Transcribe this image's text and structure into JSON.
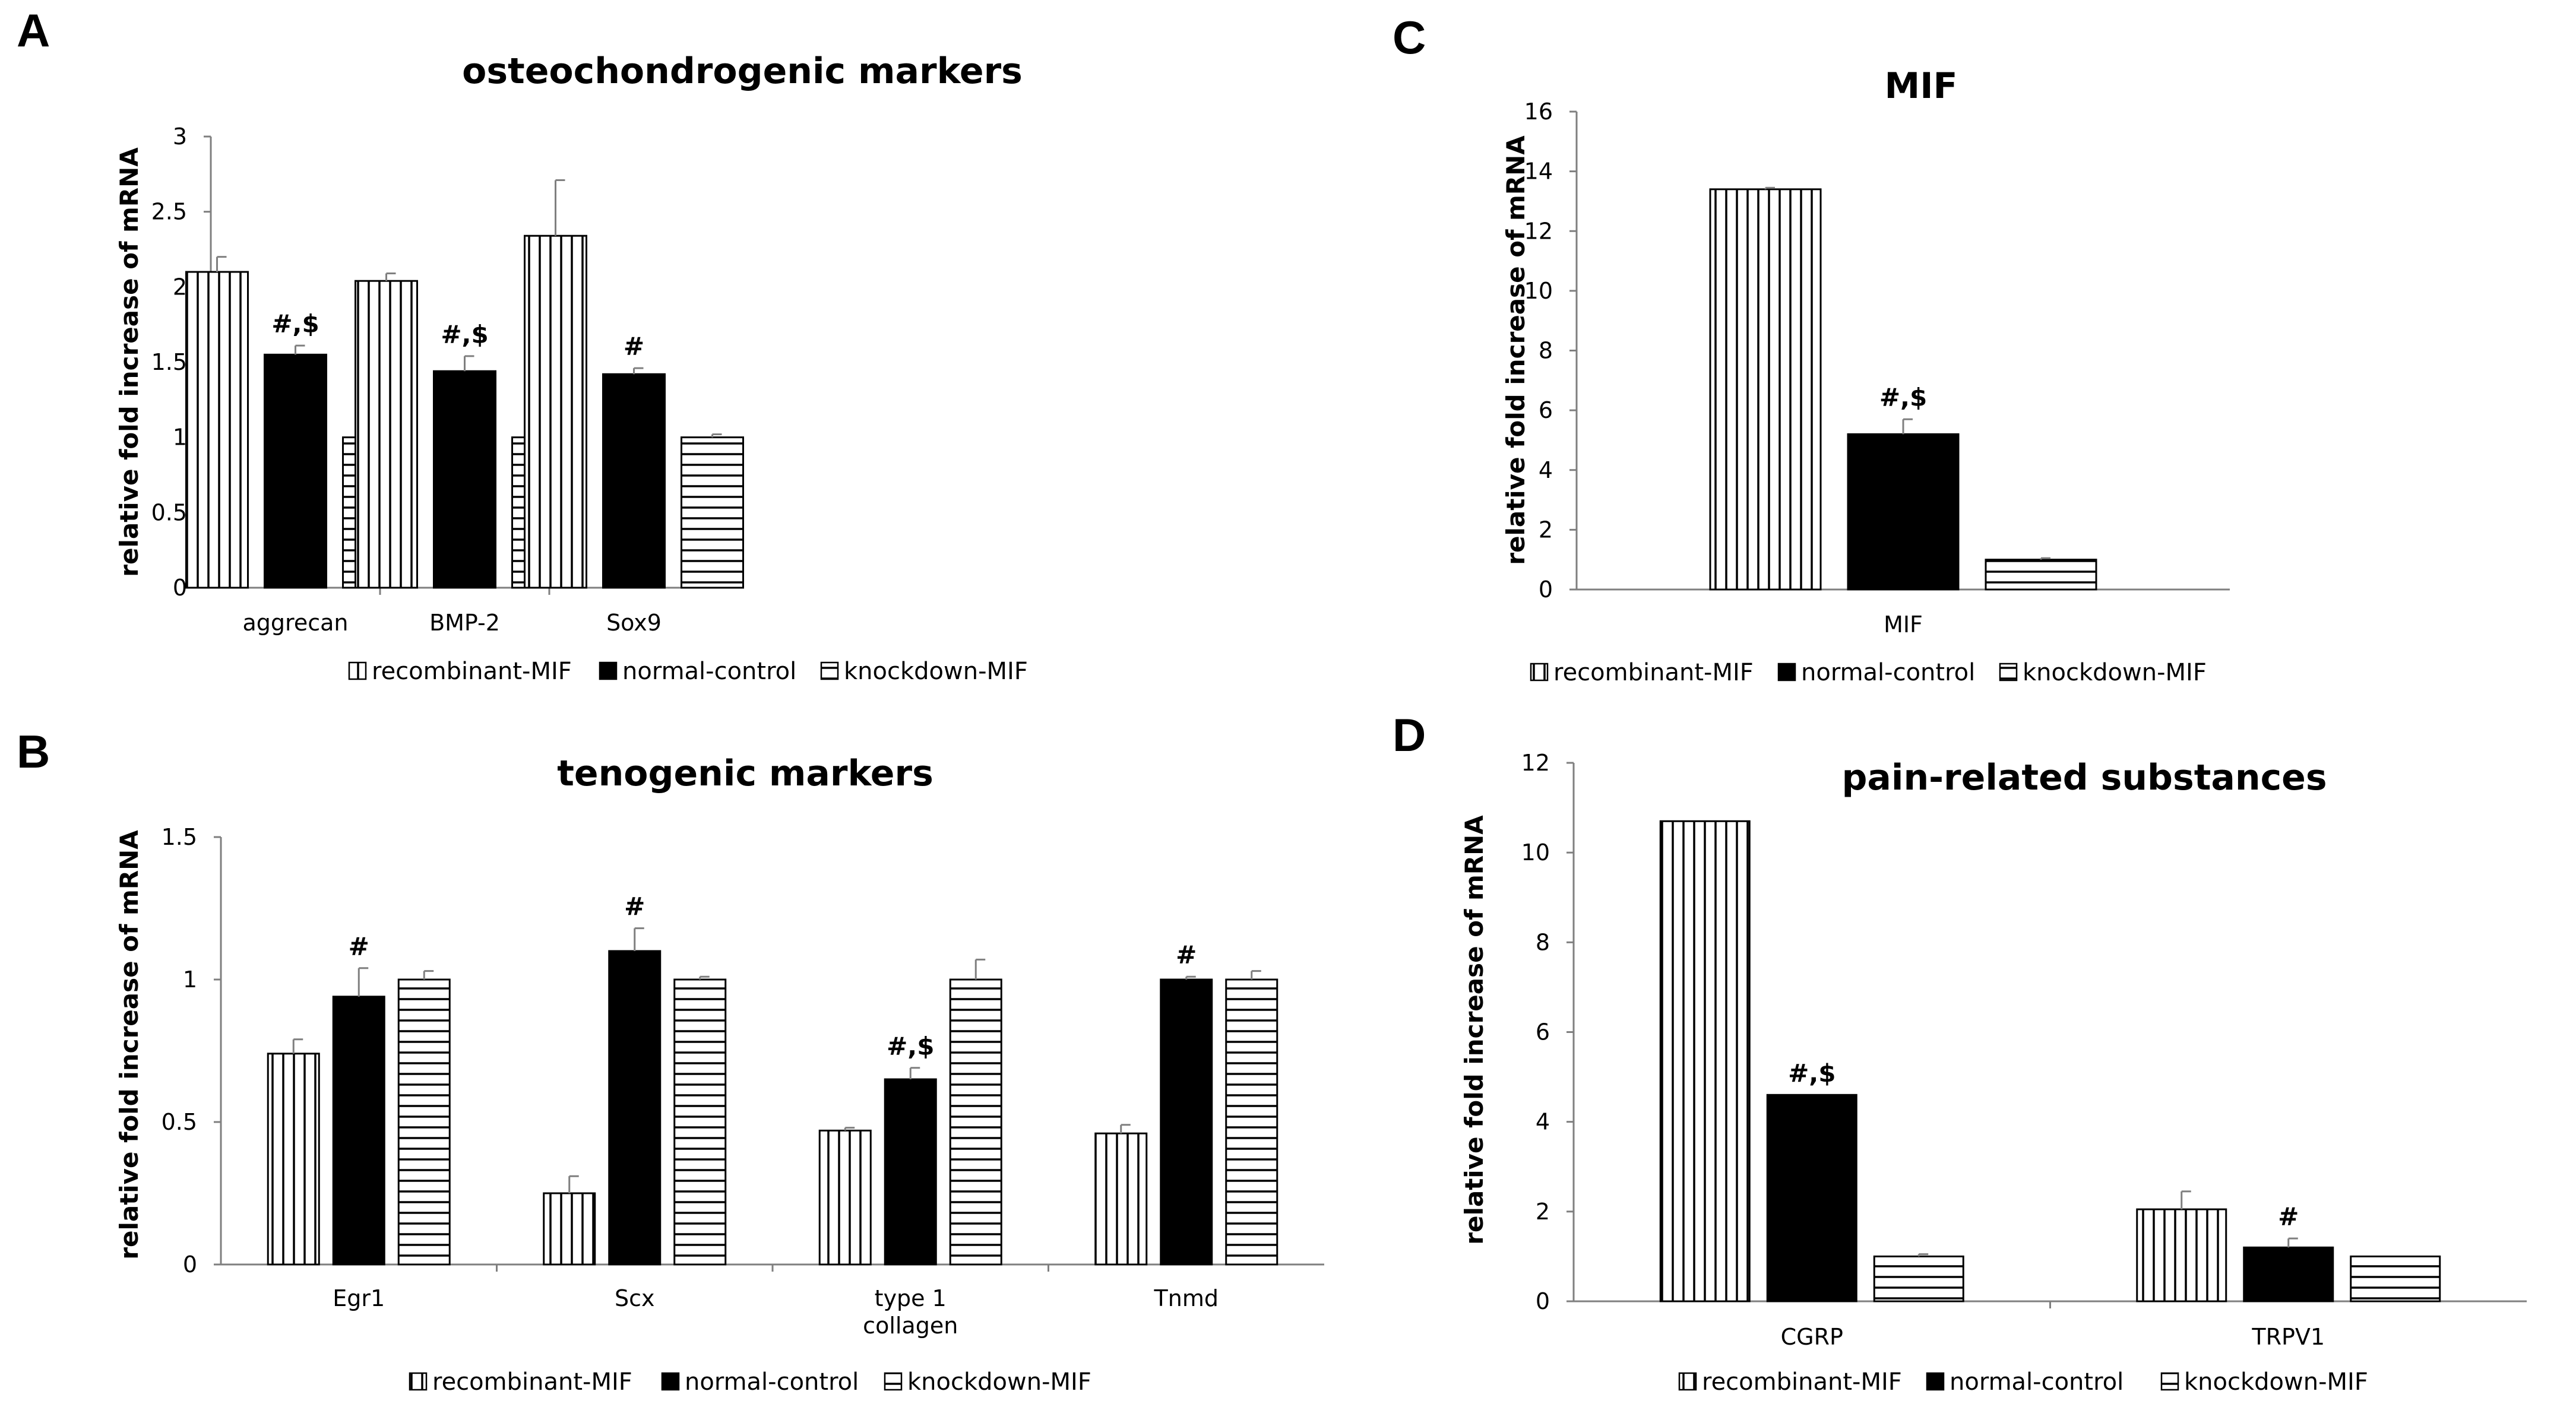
{
  "colors": {
    "black": "#000000",
    "axis": "#7f7f7f",
    "white": "#ffffff"
  },
  "legend_labels": [
    "recombinant-MIF",
    "normal-control",
    "knockdown-MIF"
  ],
  "chart_data": [
    {
      "panel": "A",
      "type": "bar",
      "title": "osteochondrogenic markers",
      "ylabel": "relative fold increase of mRNA",
      "ylim": [
        0,
        3
      ],
      "yticks": [
        "0",
        "0.5",
        "1",
        "1.5",
        "2",
        "2.5",
        "3"
      ],
      "categories": [
        "aggrecan",
        "BMP-2",
        "Sox9"
      ],
      "series": [
        {
          "name": "recombinant-MIF",
          "values": [
            2.1,
            2.04,
            2.34
          ],
          "errors": [
            0.1,
            0.05,
            0.37
          ]
        },
        {
          "name": "normal-control",
          "values": [
            1.55,
            1.44,
            1.42
          ],
          "errors": [
            0.06,
            0.1,
            0.04
          ]
        },
        {
          "name": "knockdown-MIF",
          "values": [
            1.0,
            1.0,
            1.0
          ],
          "errors": [
            0.09,
            0.12,
            0.02
          ]
        }
      ],
      "annotations": [
        "#,$",
        "#,$",
        "#"
      ],
      "legend": "bottom"
    },
    {
      "panel": "B",
      "type": "bar",
      "title": "tenogenic markers",
      "ylabel": "relative fold increase of mRNA",
      "ylim": [
        0,
        1.5
      ],
      "yticks": [
        "0",
        "0.5",
        "1",
        "1.5"
      ],
      "categories": [
        "Egr1",
        "Scx",
        "type 1\ncollagen",
        "Tnmd"
      ],
      "series": [
        {
          "name": "recombinant-MIF",
          "values": [
            0.74,
            0.25,
            0.47,
            0.46
          ],
          "errors": [
            0.05,
            0.06,
            0.01,
            0.03
          ]
        },
        {
          "name": "normal-control",
          "values": [
            0.94,
            1.1,
            0.65,
            1.0
          ],
          "errors": [
            0.1,
            0.08,
            0.04,
            0.01
          ]
        },
        {
          "name": "knockdown-MIF",
          "values": [
            1.0,
            1.0,
            1.0,
            1.0
          ],
          "errors": [
            0.03,
            0.01,
            0.07,
            0.03
          ]
        }
      ],
      "annotations": [
        "#",
        "#",
        "#,$",
        "#"
      ],
      "legend": "bottom"
    },
    {
      "panel": "C",
      "type": "bar",
      "title": "MIF",
      "ylabel": "relative fold increase of mRNA",
      "ylim": [
        0,
        16
      ],
      "yticks": [
        "0",
        "2",
        "4",
        "6",
        "8",
        "10",
        "12",
        "14",
        "16"
      ],
      "categories": [
        "MIF"
      ],
      "series": [
        {
          "name": "recombinant-MIF",
          "values": [
            13.4
          ],
          "errors": [
            0.05
          ]
        },
        {
          "name": "normal-control",
          "values": [
            5.2
          ],
          "errors": [
            0.5
          ]
        },
        {
          "name": "knockdown-MIF",
          "values": [
            1.0
          ],
          "errors": [
            0.05
          ]
        }
      ],
      "annotations": [
        "#,$"
      ],
      "legend": "bottom"
    },
    {
      "panel": "D",
      "type": "bar",
      "title": "pain-related substances",
      "ylabel": "relative fold increase of mRNA",
      "ylim": [
        0,
        12
      ],
      "yticks": [
        "0",
        "2",
        "4",
        "6",
        "8",
        "10",
        "12"
      ],
      "categories": [
        "CGRP",
        "TRPV1"
      ],
      "series": [
        {
          "name": "recombinant-MIF",
          "values": [
            10.7,
            2.05
          ],
          "errors": [
            0.0,
            0.4
          ]
        },
        {
          "name": "normal-control",
          "values": [
            4.6,
            1.2
          ],
          "errors": [
            0.0,
            0.2
          ]
        },
        {
          "name": "knockdown-MIF",
          "values": [
            1.0,
            1.0
          ],
          "errors": [
            0.05,
            0.0
          ]
        }
      ],
      "annotations": [
        "#,$",
        "#"
      ],
      "legend": "bottom"
    }
  ]
}
